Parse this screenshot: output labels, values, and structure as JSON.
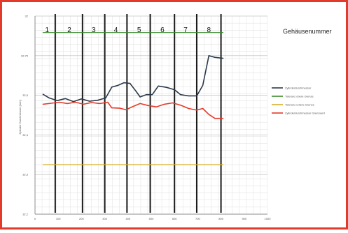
{
  "chart_data": {
    "type": "line",
    "header": "Gehäusenummer",
    "ylabel": "Zylinder Durchmesser [mm]",
    "ylim": [
      32.2,
      32.8
    ],
    "y_ticks": [
      "32",
      "32,75",
      "32,5",
      "32,4",
      "32,3",
      "32,2"
    ],
    "xlim": [
      0,
      1150
    ],
    "x_ticks": [
      "0",
      "100",
      "200",
      "300",
      "400",
      "500",
      "600",
      "700",
      "800",
      "900",
      "1000"
    ],
    "cell_lines_x": [
      100,
      235,
      345,
      455,
      570,
      690,
      800,
      920
    ],
    "cells": [
      {
        "label": "1",
        "x": 60
      },
      {
        "label": "2",
        "x": 170
      },
      {
        "label": "3",
        "x": 290
      },
      {
        "label": "4",
        "x": 400
      },
      {
        "label": "5",
        "x": 515
      },
      {
        "label": "6",
        "x": 630
      },
      {
        "label": "7",
        "x": 745
      },
      {
        "label": "8",
        "x": 860
      }
    ],
    "series": [
      {
        "name": "Zylinderdurchmesser",
        "color": "#2b3a4a",
        "x": [
          40,
          70,
          110,
          150,
          190,
          230,
          270,
          310,
          350,
          380,
          410,
          440,
          470,
          500,
          520,
          550,
          580,
          610,
          650,
          690,
          720,
          760,
          800,
          830,
          860,
          890,
          930
        ],
        "y": [
          32.563,
          32.552,
          32.544,
          32.55,
          32.541,
          32.549,
          32.542,
          32.545,
          32.552,
          32.585,
          32.59,
          32.598,
          32.596,
          32.572,
          32.555,
          32.562,
          32.562,
          32.588,
          32.584,
          32.577,
          32.562,
          32.558,
          32.558,
          32.59,
          32.68,
          32.675,
          32.672
        ]
      },
      {
        "name": "Toleranz obere Grenze",
        "color": "#3a8a2a",
        "x": [
          40,
          930
        ],
        "y": [
          32.75,
          32.75
        ]
      },
      {
        "name": "Toleranz untere Grenze",
        "color": "#d4b02a",
        "x": [
          40,
          930
        ],
        "y": [
          32.35,
          32.35
        ]
      },
      {
        "name": "Zylinderdurchmesser Grenzwert",
        "color": "#e53a2a",
        "x": [
          40,
          80,
          120,
          160,
          200,
          240,
          280,
          320,
          360,
          380,
          420,
          450,
          480,
          520,
          560,
          600,
          640,
          680,
          720,
          760,
          800,
          830,
          860,
          890,
          930
        ],
        "y": [
          32.533,
          32.536,
          32.539,
          32.535,
          32.539,
          32.533,
          32.538,
          32.535,
          32.539,
          32.522,
          32.521,
          32.516,
          32.525,
          32.535,
          32.529,
          32.525,
          32.533,
          32.537,
          32.53,
          32.52,
          32.515,
          32.52,
          32.502,
          32.49,
          32.49
        ]
      }
    ]
  }
}
